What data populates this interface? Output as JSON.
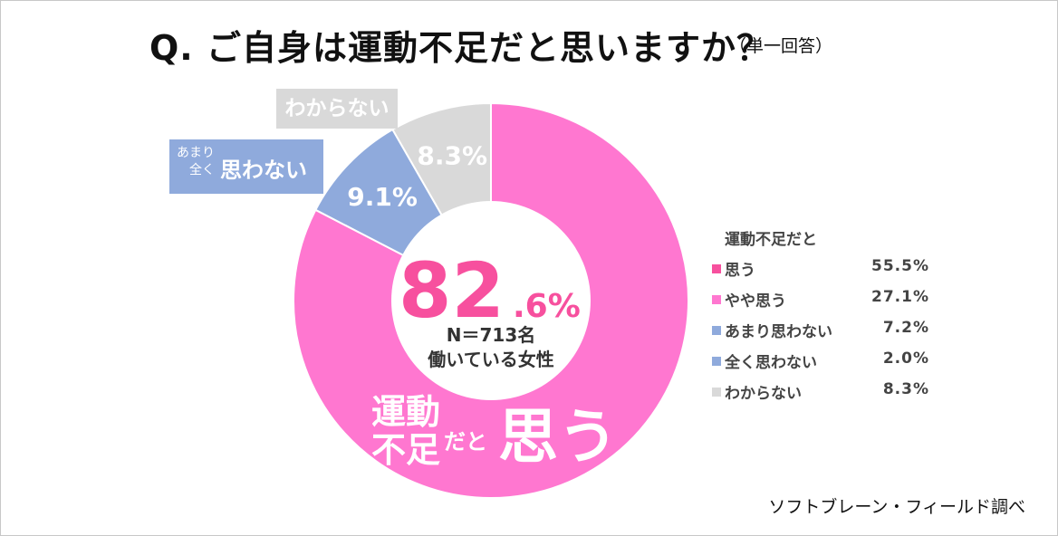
{
  "header": {
    "question": "Q.  ご自身は運動不足だと思いますか？",
    "note": "（単一回答）"
  },
  "colors": {
    "think": "#ff77d0",
    "not_think": "#8faadc",
    "unknown": "#d9d9d9",
    "center_big": "#f7509e"
  },
  "chart_data": {
    "type": "pie",
    "variant": "donut",
    "categories": [
      "運動不足だと思う",
      "あまり全く思わない",
      "わからない"
    ],
    "values": [
      82.6,
      9.1,
      8.3
    ],
    "slice_labels": [
      "",
      "9.1%",
      "8.3%"
    ],
    "center": {
      "big_number": "82",
      "decimal": ".6%",
      "sample": "N＝713名",
      "group": "働いている女性"
    },
    "inner_label": {
      "line1": "運動",
      "line2": "不足",
      "mid": "だと",
      "big": "思う"
    },
    "callouts": {
      "unknown": "わからない",
      "not_think_small1": "あまり",
      "not_think_small2": "全く",
      "not_think_big": "思わない"
    },
    "legend": {
      "title": "運動不足だと",
      "items": [
        {
          "label": "思う",
          "value": "55.5%",
          "color": "#f7509e"
        },
        {
          "label": "やや思う",
          "value": "27.1%",
          "color": "#ff77d0"
        },
        {
          "label": "あまり思わない",
          "value": "7.2%",
          "color": "#8faadc"
        },
        {
          "label": "全く思わない",
          "value": "2.0%",
          "color": "#8faadc"
        },
        {
          "label": "わからない",
          "value": "8.3%",
          "color": "#d9d9d9"
        }
      ]
    }
  },
  "footer": {
    "source": "ソフトブレーン・フィールド調べ"
  }
}
